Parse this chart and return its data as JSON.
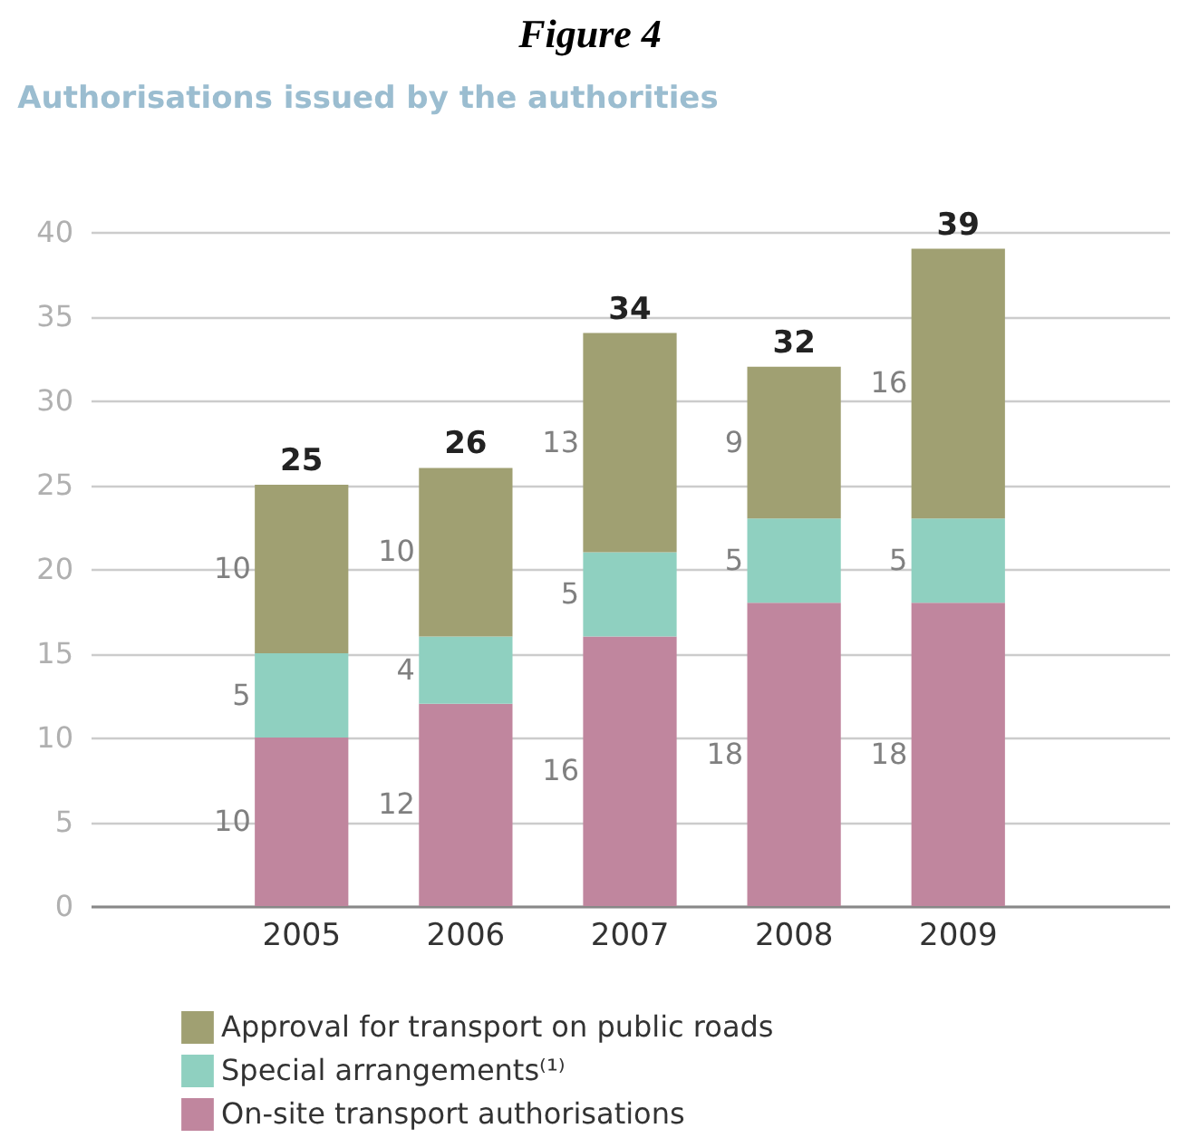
{
  "chart_data": {
    "type": "bar",
    "title": "Figure 4",
    "subtitle": "Authorisations issued by the authorities",
    "stacked": true,
    "categories": [
      "2005",
      "2006",
      "2007",
      "2008",
      "2009"
    ],
    "series": [
      {
        "name": "On-site transport authorisations",
        "color": "#c0869e",
        "values": [
          10,
          12,
          16,
          18,
          18
        ]
      },
      {
        "name": "Special arrangements⁽¹⁾",
        "color": "#8fd0c0",
        "values": [
          5,
          4,
          5,
          5,
          5
        ]
      },
      {
        "name": "Approval for transport on public roads",
        "color": "#a0a072",
        "values": [
          10,
          10,
          13,
          9,
          16
        ]
      }
    ],
    "data_labels": true,
    "totals": [
      "25",
      "26",
      "34",
      "32",
      "39"
    ],
    "ylim": [
      0,
      40
    ],
    "yticks": [
      0,
      5,
      10,
      15,
      20,
      25,
      30,
      35,
      40
    ],
    "grid": "y",
    "legend": "bottom"
  }
}
